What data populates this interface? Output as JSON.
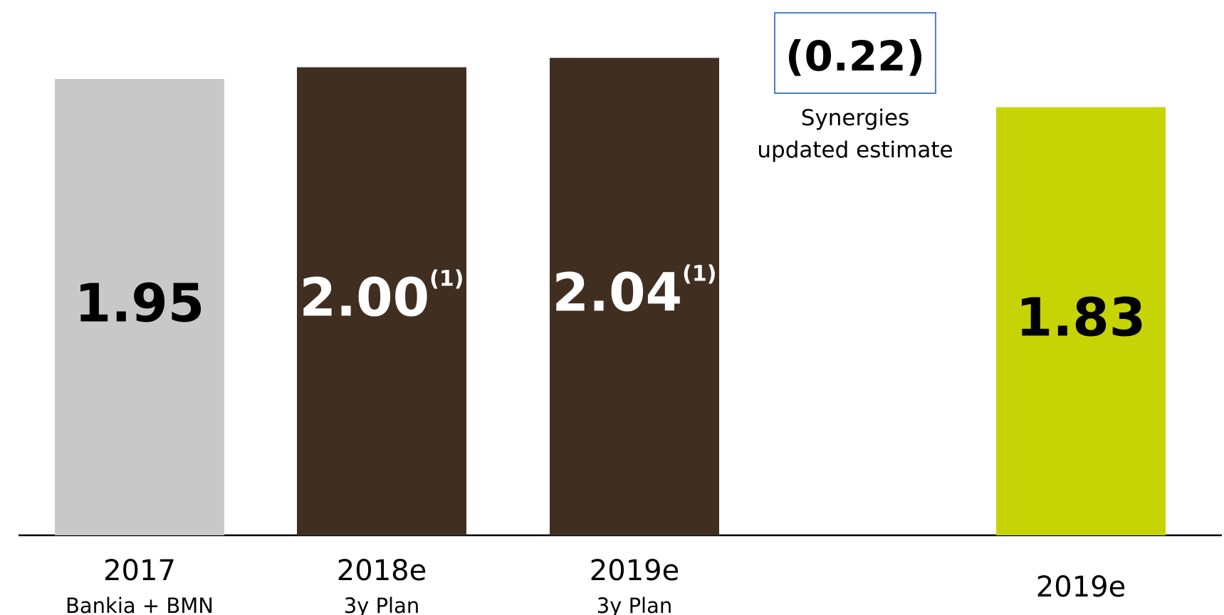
{
  "chart_data": {
    "type": "bar",
    "categories": [
      "2017",
      "2018e",
      "2019e",
      "",
      "2019e"
    ],
    "sublabels": [
      "Bankia + BMN",
      "3y Plan",
      "3y Plan",
      "",
      ""
    ],
    "values": [
      1.95,
      2.0,
      2.04,
      -0.22,
      1.83
    ],
    "value_labels": [
      "1.95",
      "2.00",
      "2.04",
      "(0.22)",
      "1.83"
    ],
    "footnote_marks": [
      "",
      "(1)",
      "(1)",
      "",
      ""
    ],
    "annotation": [
      "Synergies",
      "updated estimate"
    ],
    "colors": [
      "#c8c8c8",
      "#402f21",
      "#402f21",
      "#ffffff",
      "#c6d406"
    ],
    "label_colors": [
      "#000000",
      "#ffffff",
      "#ffffff",
      "#000000",
      "#000000"
    ],
    "box_border_color": "#4a7fd4",
    "axis_color": "#000000",
    "ylim": [
      0,
      2.1
    ],
    "title": "",
    "xlabel": "",
    "ylabel": ""
  }
}
